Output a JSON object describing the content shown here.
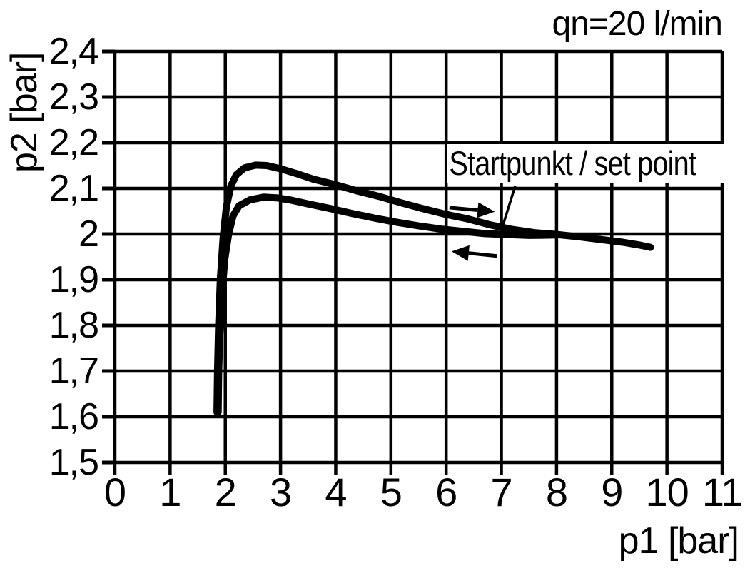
{
  "page": {
    "background": "#ffffff",
    "ink_color": "#000000"
  },
  "chart_data": {
    "type": "line",
    "title": "qn=20 l/min",
    "xlabel": "p1 [bar]",
    "ylabel": "p2 [bar]",
    "xlim": [
      0,
      11
    ],
    "ylim": [
      1.5,
      2.4
    ],
    "grid": true,
    "legend": "none",
    "x_ticks": [
      {
        "v": 0,
        "label": "0"
      },
      {
        "v": 1,
        "label": "1"
      },
      {
        "v": 2,
        "label": "2"
      },
      {
        "v": 3,
        "label": "3"
      },
      {
        "v": 4,
        "label": "4"
      },
      {
        "v": 5,
        "label": "5"
      },
      {
        "v": 6,
        "label": "6"
      },
      {
        "v": 7,
        "label": "7"
      },
      {
        "v": 8,
        "label": "8"
      },
      {
        "v": 9,
        "label": "9"
      },
      {
        "v": 10,
        "label": "10"
      },
      {
        "v": 11,
        "label": "11"
      }
    ],
    "y_ticks": [
      {
        "v": 2.4,
        "label": "2,4"
      },
      {
        "v": 2.3,
        "label": "2,3"
      },
      {
        "v": 2.2,
        "label": "2,2"
      },
      {
        "v": 2.1,
        "label": "2,1"
      },
      {
        "v": 2.0,
        "label": "2"
      },
      {
        "v": 1.9,
        "label": "1,9"
      },
      {
        "v": 1.8,
        "label": "1,8"
      },
      {
        "v": 1.7,
        "label": "1,7"
      },
      {
        "v": 1.6,
        "label": "1,6"
      },
      {
        "v": 1.5,
        "label": "1,5"
      }
    ],
    "series": [
      {
        "name": "upper-hysteresis-branch",
        "points": [
          [
            1.85,
            1.61
          ],
          [
            1.86,
            1.7
          ],
          [
            1.88,
            1.8
          ],
          [
            1.91,
            1.9
          ],
          [
            1.96,
            1.99
          ],
          [
            2.02,
            2.06
          ],
          [
            2.1,
            2.105
          ],
          [
            2.2,
            2.13
          ],
          [
            2.35,
            2.145
          ],
          [
            2.55,
            2.151
          ],
          [
            2.75,
            2.15
          ],
          [
            3.0,
            2.143
          ],
          [
            3.3,
            2.132
          ],
          [
            3.6,
            2.12
          ],
          [
            4.0,
            2.108
          ],
          [
            4.4,
            2.094
          ],
          [
            4.8,
            2.082
          ],
          [
            5.2,
            2.068
          ],
          [
            5.6,
            2.055
          ],
          [
            6.0,
            2.043
          ],
          [
            6.4,
            2.033
          ],
          [
            6.8,
            2.02
          ],
          [
            7.2,
            2.01
          ],
          [
            7.6,
            2.003
          ],
          [
            8.0,
            1.999
          ],
          [
            8.4,
            1.994
          ],
          [
            8.8,
            1.988
          ],
          [
            9.2,
            1.982
          ],
          [
            9.5,
            1.976
          ],
          [
            9.7,
            1.971
          ]
        ]
      },
      {
        "name": "lower-hysteresis-branch",
        "points": [
          [
            1.87,
            1.61
          ],
          [
            1.88,
            1.7
          ],
          [
            1.9,
            1.78
          ],
          [
            1.94,
            1.87
          ],
          [
            1.99,
            1.945
          ],
          [
            2.06,
            2.0
          ],
          [
            2.14,
            2.04
          ],
          [
            2.25,
            2.062
          ],
          [
            2.45,
            2.075
          ],
          [
            2.7,
            2.081
          ],
          [
            2.95,
            2.079
          ],
          [
            3.2,
            2.074
          ],
          [
            3.5,
            2.066
          ],
          [
            3.9,
            2.056
          ],
          [
            4.3,
            2.045
          ],
          [
            4.7,
            2.035
          ],
          [
            5.1,
            2.026
          ],
          [
            5.5,
            2.018
          ],
          [
            5.9,
            2.011
          ],
          [
            6.3,
            2.006
          ],
          [
            6.7,
            2.001
          ],
          [
            7.1,
            1.999
          ],
          [
            7.5,
            1.997
          ],
          [
            8.0,
            1.998
          ]
        ]
      }
    ],
    "annotations": [
      {
        "type": "label",
        "text": "Startpunkt / set point",
        "anchor": [
          7.0,
          2.0
        ]
      },
      {
        "type": "leader",
        "from": [
          7.25,
          2.105
        ],
        "to": [
          7.0,
          2.008
        ]
      },
      {
        "type": "arrow",
        "name": "increasing-pressure-arrow",
        "dir": "right",
        "from": [
          6.06,
          2.058
        ],
        "to": [
          6.88,
          2.049
        ]
      },
      {
        "type": "arrow",
        "name": "decreasing-pressure-arrow",
        "dir": "left",
        "from": [
          6.92,
          1.952
        ],
        "to": [
          6.1,
          1.962
        ]
      }
    ]
  }
}
